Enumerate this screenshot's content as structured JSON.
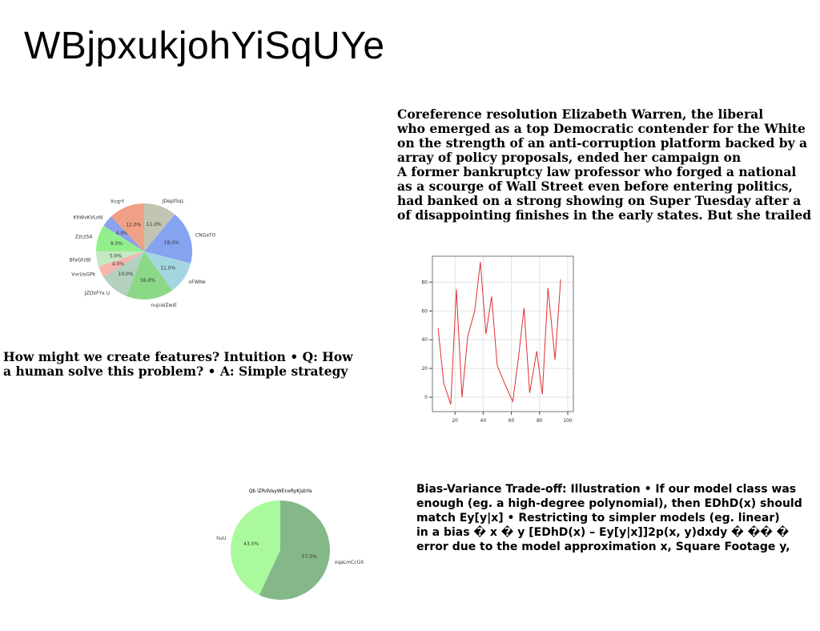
{
  "title": "WBjpxukjohYiSqUYe",
  "paragraphs": {
    "p1": "Coreference resolution Elizabeth Warren, the liberal\nwho emerged as a top Democratic contender for the White\non the strength of an anti-corruption platform backed by a\narray of policy proposals, ended her campaign on\nA former bankruptcy law professor who forged a national\nas a scourge of Wall Street even before entering politics,\nhad banked on a strong showing on Super Tuesday after a\nof disappointing finishes in the early states. But she trailed",
    "p2": "How might we create features? Intuition • Q: How\na human solve this problem? • A: Simple strategy",
    "p3": "Bias-Variance Trade-off: Illustration • If our model class was\nenough (eg. a high-degree polynomial), then EDhD(x) should\nmatch Ey[y|x] • Restricting to simpler models (eg. linear)\nin a bias � x � y [EDhD(x) – Ey[y|x]]2p(x, y)dxdy � �� �\nerror due to the model approximation x, Square Footage y,"
  },
  "chart_data": [
    {
      "type": "pie",
      "title": "",
      "slices": [
        {
          "label": "JDeptSqL",
          "value": 11.0,
          "pct": "11.0%",
          "color": "#c2c5b1"
        },
        {
          "label": "CNGaTO",
          "value": 18.0,
          "pct": "18.0%",
          "color": "#86a3f0"
        },
        {
          "label": "oFWNe",
          "value": 11.0,
          "pct": "11.0%",
          "color": "#a4d6e2"
        },
        {
          "label": "nujceIZwiE",
          "value": 16.0,
          "pct": "16.0%",
          "color": "#8bd887"
        },
        {
          "label": "JZDVFYx U",
          "value": 10.0,
          "pct": "10.0%",
          "color": "#b4d0bf"
        },
        {
          "label": "VvrUoGPk",
          "value": 4.0,
          "pct": "4.0%",
          "color": "#f6b5ad"
        },
        {
          "label": "BfaGFzBl",
          "value": 5.0,
          "pct": "5.0%",
          "color": "#c4e8c0"
        },
        {
          "label": "ZzczSA",
          "value": 9.0,
          "pct": "9.0%",
          "color": "#93ef8c"
        },
        {
          "label": "KhWvKVLoN",
          "value": 4.0,
          "pct": "4.0%",
          "color": "#8ea1ec"
        },
        {
          "label": "XcqrY",
          "value": 12.0,
          "pct": "12.0%",
          "color": "#f0a185"
        }
      ]
    },
    {
      "type": "line",
      "title": "",
      "xlabel": "",
      "ylabel": "",
      "xlim": [
        4,
        104
      ],
      "ylim": [
        -10,
        98
      ],
      "xticks": [
        20,
        40,
        60,
        80,
        100
      ],
      "yticks": [
        0,
        20,
        40,
        60,
        80
      ],
      "grid": true,
      "series": [
        {
          "color": "#e03030",
          "points": [
            [
              8,
              48
            ],
            [
              12,
              10
            ],
            [
              17,
              -5
            ],
            [
              21,
              75
            ],
            [
              25,
              0
            ],
            [
              29,
              42
            ],
            [
              34,
              60
            ],
            [
              38,
              94
            ],
            [
              42,
              44
            ],
            [
              46,
              70
            ],
            [
              50,
              22
            ],
            [
              55,
              10
            ],
            [
              61,
              -3
            ],
            [
              65,
              27
            ],
            [
              69,
              62
            ],
            [
              73,
              3
            ],
            [
              78,
              32
            ],
            [
              82,
              2
            ],
            [
              86,
              76
            ],
            [
              91,
              26
            ],
            [
              95,
              82
            ]
          ]
        }
      ]
    },
    {
      "type": "pie",
      "title": "Qb lZRdVayWEnxRyKjsbYa",
      "slices": [
        {
          "label": "xqaLmCcGX",
          "value": 57.0,
          "pct": "57.0%",
          "color": "#84b889"
        },
        {
          "label": "huU",
          "value": 43.0,
          "pct": "43.0%",
          "color": "#abf99d"
        }
      ]
    }
  ]
}
